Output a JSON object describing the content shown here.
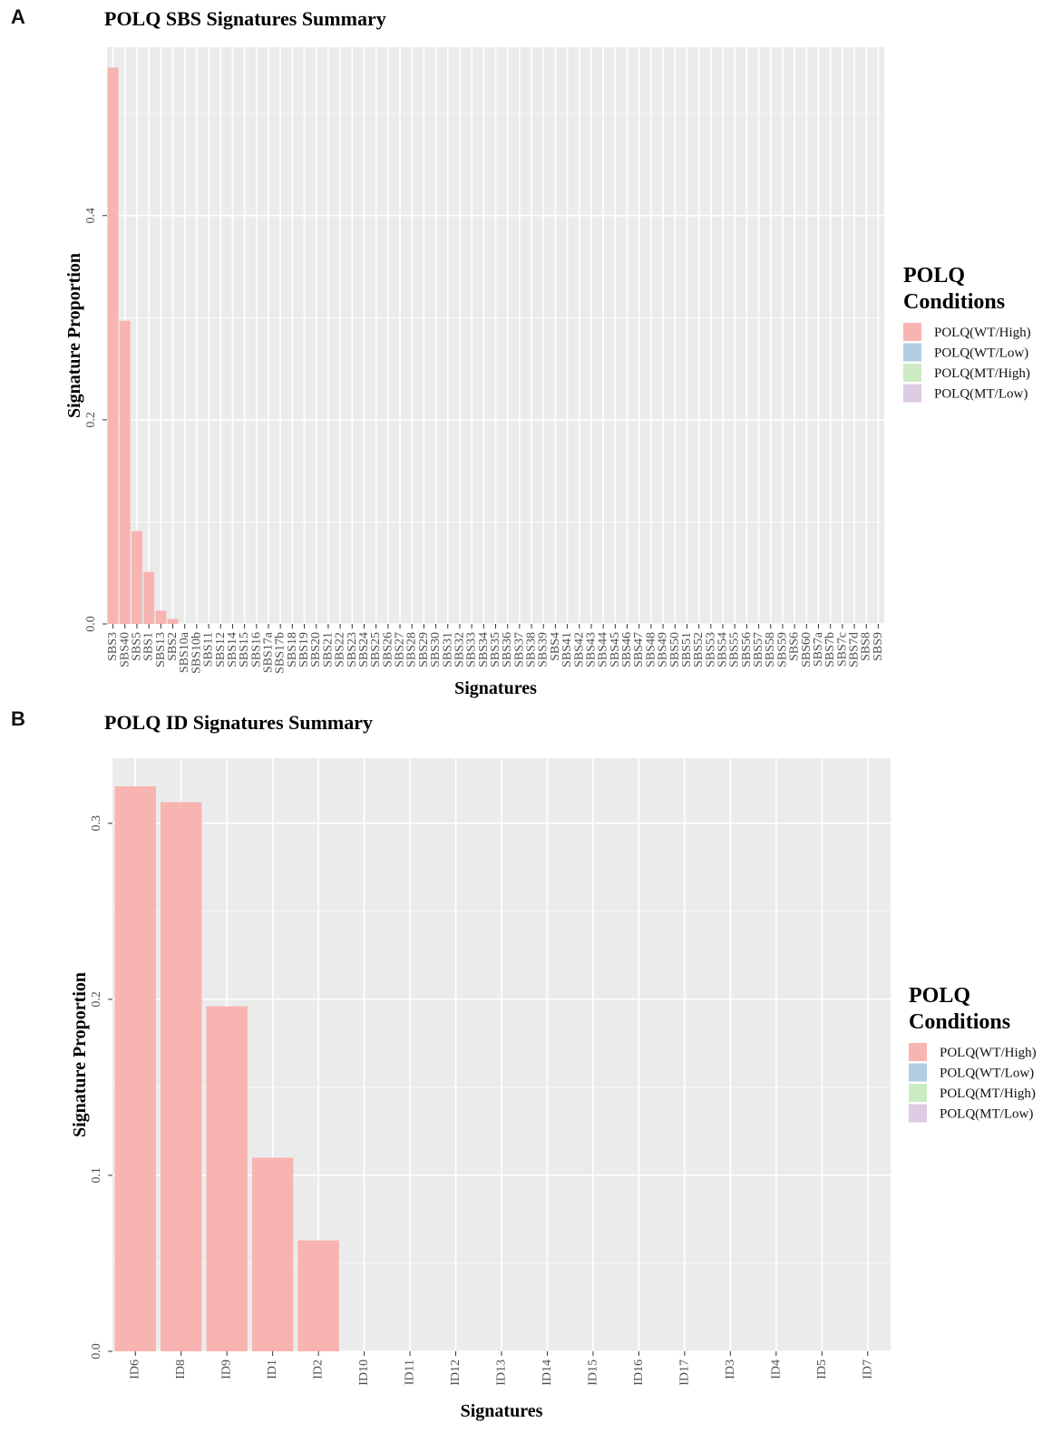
{
  "panels": [
    {
      "letter": "A",
      "chart_data": {
        "type": "bar",
        "title": "POLQ SBS Signatures Summary",
        "xlabel": "Signatures",
        "ylabel": "Signature Proportion",
        "ylim": [
          0,
          0.565
        ],
        "yticks": [
          0.0,
          0.2,
          0.4
        ],
        "ytick_labels": [
          "0.0",
          "0.2",
          "0.4"
        ],
        "grid": true,
        "legend_position": "right",
        "legend_title": [
          "POLQ",
          "Conditions"
        ],
        "legend": [
          {
            "label": "POLQ(WT/High)",
            "color": "#f8b4b0"
          },
          {
            "label": "POLQ(WT/Low)",
            "color": "#b3cde3"
          },
          {
            "label": "POLQ(MT/High)",
            "color": "#ccebc5"
          },
          {
            "label": "POLQ(MT/Low)",
            "color": "#decbe4"
          }
        ],
        "categories": [
          "SBS3",
          "SBS40",
          "SBS5",
          "SBS1",
          "SBS13",
          "SBS2",
          "SBS10a",
          "SBS10b",
          "SBS11",
          "SBS12",
          "SBS14",
          "SBS15",
          "SBS16",
          "SBS17a",
          "SBS17b",
          "SBS18",
          "SBS19",
          "SBS20",
          "SBS21",
          "SBS22",
          "SBS23",
          "SBS24",
          "SBS25",
          "SBS26",
          "SBS27",
          "SBS28",
          "SBS29",
          "SBS30",
          "SBS31",
          "SBS32",
          "SBS33",
          "SBS34",
          "SBS35",
          "SBS36",
          "SBS37",
          "SBS38",
          "SBS39",
          "SBS4",
          "SBS41",
          "SBS42",
          "SBS43",
          "SBS44",
          "SBS45",
          "SBS46",
          "SBS47",
          "SBS48",
          "SBS49",
          "SBS50",
          "SBS51",
          "SBS52",
          "SBS53",
          "SBS54",
          "SBS55",
          "SBS56",
          "SBS57",
          "SBS58",
          "SBS59",
          "SBS6",
          "SBS60",
          "SBS7a",
          "SBS7b",
          "SBS7c",
          "SBS7d",
          "SBS8",
          "SBS9"
        ],
        "series": [
          {
            "name": "POLQ(WT/High)",
            "color": "#f8b4b0",
            "values": [
              0.545,
              0.297,
              0.091,
              0.051,
              0.013,
              0.005,
              0,
              0,
              0,
              0,
              0,
              0,
              0,
              0,
              0,
              0,
              0,
              0,
              0,
              0,
              0,
              0,
              0,
              0,
              0,
              0,
              0,
              0,
              0,
              0,
              0,
              0,
              0,
              0,
              0,
              0,
              0,
              0,
              0,
              0,
              0,
              0,
              0,
              0,
              0,
              0,
              0,
              0,
              0,
              0,
              0,
              0,
              0,
              0,
              0,
              0,
              0,
              0,
              0,
              0,
              0,
              0,
              0,
              0,
              0
            ]
          }
        ]
      }
    },
    {
      "letter": "B",
      "chart_data": {
        "type": "bar",
        "title": "POLQ ID Signatures Summary",
        "xlabel": "Signatures",
        "ylabel": "Signature Proportion",
        "ylim": [
          0,
          0.337
        ],
        "yticks": [
          0.0,
          0.1,
          0.2,
          0.3
        ],
        "ytick_labels": [
          "0.0",
          "0.1",
          "0.2",
          "0.3"
        ],
        "grid": true,
        "legend_position": "right",
        "legend_title": [
          "POLQ",
          "Conditions"
        ],
        "legend": [
          {
            "label": "POLQ(WT/High)",
            "color": "#f8b4b0"
          },
          {
            "label": "POLQ(WT/Low)",
            "color": "#b3cde3"
          },
          {
            "label": "POLQ(MT/High)",
            "color": "#ccebc5"
          },
          {
            "label": "POLQ(MT/Low)",
            "color": "#decbe4"
          }
        ],
        "categories": [
          "ID6",
          "ID8",
          "ID9",
          "ID1",
          "ID2",
          "ID10",
          "ID11",
          "ID12",
          "ID13",
          "ID14",
          "ID15",
          "ID16",
          "ID17",
          "ID3",
          "ID4",
          "ID5",
          "ID7"
        ],
        "series": [
          {
            "name": "POLQ(WT/High)",
            "color": "#f8b4b0",
            "values": [
              0.321,
              0.312,
              0.196,
              0.11,
              0.063,
              0,
              0,
              0,
              0,
              0,
              0,
              0,
              0,
              0,
              0,
              0,
              0
            ]
          }
        ]
      }
    }
  ]
}
